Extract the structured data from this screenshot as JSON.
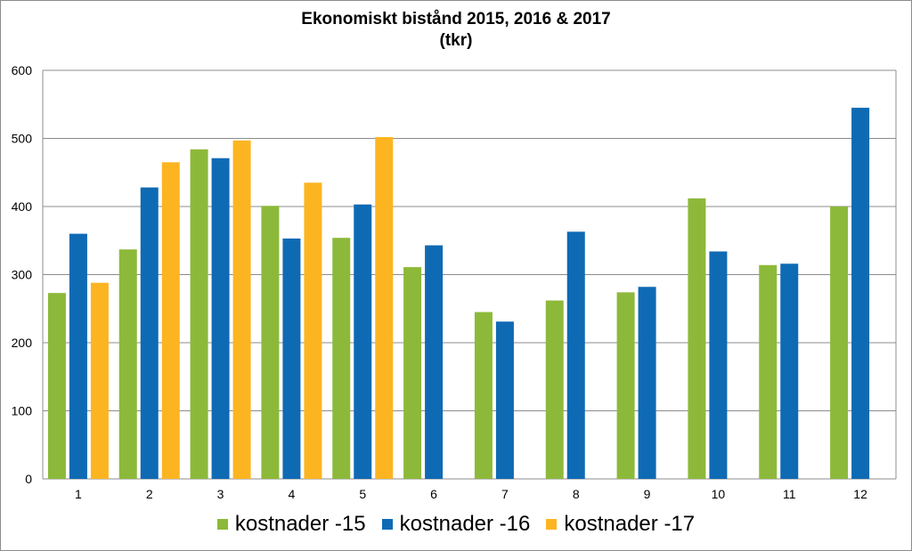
{
  "chart_data": {
    "type": "bar",
    "title": "Ekonomiskt bistånd 2015, 2016 & 2017",
    "subtitle": "(tkr)",
    "xlabel": "",
    "ylabel": "",
    "ylim": [
      0,
      600
    ],
    "yticks": [
      0,
      100,
      200,
      300,
      400,
      500,
      600
    ],
    "grid": true,
    "legend_position": "bottom",
    "categories": [
      "1",
      "2",
      "3",
      "4",
      "5",
      "6",
      "7",
      "8",
      "9",
      "10",
      "11",
      "12"
    ],
    "series": [
      {
        "name": "kostnader -15",
        "color": "#8DB93A",
        "values": [
          273,
          337,
          484,
          401,
          354,
          311,
          245,
          262,
          274,
          412,
          314,
          400
        ]
      },
      {
        "name": "kostnader -16",
        "color": "#0F6AB4",
        "values": [
          360,
          428,
          471,
          353,
          403,
          343,
          231,
          363,
          282,
          334,
          316,
          545
        ]
      },
      {
        "name": "kostnader -17",
        "color": "#FCB521",
        "values": [
          288,
          465,
          497,
          435,
          502,
          null,
          null,
          null,
          null,
          null,
          null,
          null
        ]
      }
    ]
  }
}
